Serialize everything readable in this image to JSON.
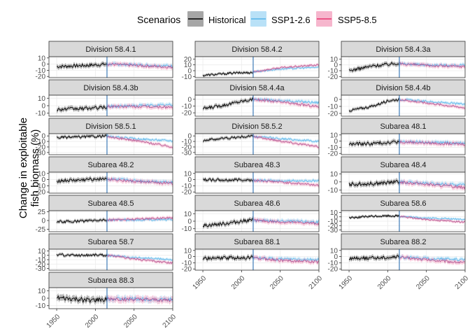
{
  "chart_data": {
    "type": "line",
    "ylabel_line1": "Change in exploitable",
    "ylabel_line2": "fish biomass (%)",
    "legend": {
      "title": "Scenarios",
      "position": "top",
      "entries": [
        {
          "name": "Historical",
          "color": "#000000",
          "fill": "#a6a6a6"
        },
        {
          "name": "SSP1-2.6",
          "color": "#56b4e9",
          "fill": "#b9e1f7"
        },
        {
          "name": "SSP5-8.5",
          "color": "#e7336f",
          "fill": "#f6b6cd"
        }
      ]
    },
    "x_ticks": [
      1950,
      2000,
      2050,
      2100
    ],
    "x_range": [
      1940,
      2100
    ],
    "scenario_split_year": 2015,
    "grid": true,
    "panels": [
      {
        "title": "Division 58.4.1",
        "yticks": [
          10,
          0,
          -10,
          -20
        ],
        "ylim": [
          -22,
          12
        ],
        "hist": [
          [
            1950,
            -4
          ],
          [
            1970,
            -3
          ],
          [
            1990,
            -2
          ],
          [
            2015,
            0
          ]
        ],
        "ssp126": [
          [
            2015,
            0
          ],
          [
            2050,
            -1
          ],
          [
            2100,
            -3
          ]
        ],
        "ssp585": [
          [
            2015,
            0
          ],
          [
            2050,
            -2
          ],
          [
            2100,
            -5
          ]
        ],
        "band": 6
      },
      {
        "title": "Division 58.4.2",
        "yticks": [
          20,
          10,
          0,
          -10
        ],
        "ylim": [
          -12,
          24
        ],
        "hist": [
          [
            1950,
            -8
          ],
          [
            1970,
            -6
          ],
          [
            1990,
            -4
          ],
          [
            2015,
            -3
          ]
        ],
        "ssp126": [
          [
            2015,
            -2
          ],
          [
            2050,
            3
          ],
          [
            2100,
            6
          ]
        ],
        "ssp585": [
          [
            2015,
            -2
          ],
          [
            2050,
            5
          ],
          [
            2100,
            10
          ]
        ],
        "band": 4
      },
      {
        "title": "Division 58.4.3a",
        "yticks": [
          10,
          0,
          -10,
          -20
        ],
        "ylim": [
          -22,
          14
        ],
        "hist": [
          [
            1950,
            -10
          ],
          [
            1980,
            -2
          ],
          [
            2000,
            1
          ],
          [
            2015,
            3
          ]
        ],
        "ssp126": [
          [
            2015,
            2
          ],
          [
            2050,
            0
          ],
          [
            2100,
            -1
          ]
        ],
        "ssp585": [
          [
            2015,
            2
          ],
          [
            2050,
            -1
          ],
          [
            2100,
            -3
          ]
        ],
        "band": 6
      },
      {
        "title": "Division 58.4.3b",
        "yticks": [
          10,
          0,
          -10
        ],
        "ylim": [
          -14,
          14
        ],
        "hist": [
          [
            1950,
            -5
          ],
          [
            1980,
            -4
          ],
          [
            2000,
            -3
          ],
          [
            2015,
            -2
          ]
        ],
        "ssp126": [
          [
            2015,
            -1
          ],
          [
            2050,
            0
          ],
          [
            2100,
            1
          ]
        ],
        "ssp585": [
          [
            2015,
            -1
          ],
          [
            2050,
            -1
          ],
          [
            2100,
            -2
          ]
        ],
        "band": 5
      },
      {
        "title": "Division 58.4.4a",
        "yticks": [
          0,
          -10,
          -20
        ],
        "ylim": [
          -25,
          6
        ],
        "hist": [
          [
            1950,
            -14
          ],
          [
            1980,
            -8
          ],
          [
            2000,
            -3
          ],
          [
            2015,
            0
          ]
        ],
        "ssp126": [
          [
            2015,
            0
          ],
          [
            2050,
            -2
          ],
          [
            2100,
            -5
          ]
        ],
        "ssp585": [
          [
            2015,
            0
          ],
          [
            2050,
            -4
          ],
          [
            2100,
            -11
          ]
        ],
        "band": 5
      },
      {
        "title": "Division 58.4.4b",
        "yticks": [
          0,
          -10,
          -20
        ],
        "ylim": [
          -24,
          6
        ],
        "hist": [
          [
            1950,
            -16
          ],
          [
            1980,
            -10
          ],
          [
            2000,
            -2
          ],
          [
            2015,
            0
          ]
        ],
        "ssp126": [
          [
            2015,
            0
          ],
          [
            2050,
            -3
          ],
          [
            2100,
            -7
          ]
        ],
        "ssp585": [
          [
            2015,
            0
          ],
          [
            2050,
            -5
          ],
          [
            2100,
            -12
          ]
        ],
        "band": 4
      },
      {
        "title": "Division 58.5.1",
        "yticks": [
          0,
          -10,
          -20,
          -30
        ],
        "ylim": [
          -34,
          4
        ],
        "hist": [
          [
            1950,
            -3
          ],
          [
            1980,
            -2
          ],
          [
            2000,
            -1
          ],
          [
            2015,
            0
          ]
        ],
        "ssp126": [
          [
            2015,
            -1
          ],
          [
            2050,
            -5
          ],
          [
            2100,
            -9
          ]
        ],
        "ssp585": [
          [
            2015,
            -1
          ],
          [
            2050,
            -8
          ],
          [
            2100,
            -20
          ]
        ],
        "band": 5
      },
      {
        "title": "Division 58.5.2",
        "yticks": [
          0,
          -10,
          -20,
          -30
        ],
        "ylim": [
          -34,
          4
        ],
        "hist": [
          [
            1950,
            -8
          ],
          [
            1980,
            -4
          ],
          [
            2000,
            -2
          ],
          [
            2015,
            0
          ]
        ],
        "ssp126": [
          [
            2015,
            -1
          ],
          [
            2050,
            -5
          ],
          [
            2100,
            -10
          ]
        ],
        "ssp585": [
          [
            2015,
            -1
          ],
          [
            2050,
            -9
          ],
          [
            2100,
            -20
          ]
        ],
        "band": 5
      },
      {
        "title": "Subarea 48.1",
        "yticks": [
          10,
          0,
          -10,
          -20
        ],
        "ylim": [
          -22,
          12
        ],
        "hist": [
          [
            1950,
            -5
          ],
          [
            1980,
            -4
          ],
          [
            2000,
            -2
          ],
          [
            2015,
            -1
          ]
        ],
        "ssp126": [
          [
            2015,
            -1
          ],
          [
            2050,
            -2
          ],
          [
            2100,
            -3
          ]
        ],
        "ssp585": [
          [
            2015,
            -1
          ],
          [
            2050,
            -3
          ],
          [
            2100,
            -5
          ]
        ],
        "band": 6
      },
      {
        "title": "Subarea 48.2",
        "yticks": [
          10,
          0,
          -10,
          -20
        ],
        "ylim": [
          -22,
          12
        ],
        "hist": [
          [
            1950,
            -2
          ],
          [
            1980,
            -1
          ],
          [
            2000,
            1
          ],
          [
            2015,
            2
          ]
        ],
        "ssp126": [
          [
            2015,
            1
          ],
          [
            2050,
            -2
          ],
          [
            2100,
            -4
          ]
        ],
        "ssp585": [
          [
            2015,
            1
          ],
          [
            2050,
            -3
          ],
          [
            2100,
            -6
          ]
        ],
        "band": 6
      },
      {
        "title": "Subarea 48.3",
        "yticks": [
          10,
          0,
          -10,
          -20
        ],
        "ylim": [
          -22,
          12
        ],
        "hist": [
          [
            1950,
            0
          ],
          [
            1980,
            -1
          ],
          [
            2000,
            0
          ],
          [
            2015,
            -1
          ]
        ],
        "ssp126": [
          [
            2015,
            -1
          ],
          [
            2050,
            -2
          ],
          [
            2100,
            -2
          ]
        ],
        "ssp585": [
          [
            2015,
            -1
          ],
          [
            2050,
            -4
          ],
          [
            2100,
            -9
          ]
        ],
        "band": 5
      },
      {
        "title": "Subarea 48.4",
        "yticks": [
          10,
          0,
          -10
        ],
        "ylim": [
          -14,
          12
        ],
        "hist": [
          [
            1950,
            -3
          ],
          [
            1980,
            -2
          ],
          [
            2000,
            -1
          ],
          [
            2015,
            0
          ]
        ],
        "ssp126": [
          [
            2015,
            0
          ],
          [
            2050,
            -2
          ],
          [
            2100,
            -4
          ]
        ],
        "ssp585": [
          [
            2015,
            0
          ],
          [
            2050,
            -3
          ],
          [
            2100,
            -7
          ]
        ],
        "band": 5
      },
      {
        "title": "Subarea 48.5",
        "yticks": [
          25,
          0,
          -25
        ],
        "ylim": [
          -32,
          28
        ],
        "hist": [
          [
            1950,
            -4
          ],
          [
            1980,
            -2
          ],
          [
            2000,
            0
          ],
          [
            2015,
            2
          ]
        ],
        "ssp126": [
          [
            2015,
            1
          ],
          [
            2050,
            2
          ],
          [
            2100,
            3
          ]
        ],
        "ssp585": [
          [
            2015,
            1
          ],
          [
            2050,
            4
          ],
          [
            2100,
            8
          ]
        ],
        "band": 8
      },
      {
        "title": "Subarea 48.6",
        "yticks": [
          10,
          0,
          -10
        ],
        "ylim": [
          -14,
          14
        ],
        "hist": [
          [
            1950,
            -6
          ],
          [
            1980,
            -3
          ],
          [
            2000,
            0
          ],
          [
            2015,
            2
          ]
        ],
        "ssp126": [
          [
            2015,
            1
          ],
          [
            2050,
            0
          ],
          [
            2100,
            -1
          ]
        ],
        "ssp585": [
          [
            2015,
            1
          ],
          [
            2050,
            -1
          ],
          [
            2100,
            -3
          ]
        ],
        "band": 5
      },
      {
        "title": "Subarea 58.6",
        "yticks": [
          10,
          0,
          -10,
          -20,
          -30
        ],
        "ylim": [
          -34,
          14
        ],
        "hist": [
          [
            1950,
            -2
          ],
          [
            1980,
            1
          ],
          [
            2000,
            2
          ],
          [
            2015,
            2
          ]
        ],
        "ssp126": [
          [
            2015,
            1
          ],
          [
            2050,
            -3
          ],
          [
            2100,
            -6
          ]
        ],
        "ssp585": [
          [
            2015,
            1
          ],
          [
            2050,
            -6
          ],
          [
            2100,
            -12
          ]
        ],
        "band": 5
      },
      {
        "title": "Subarea 58.7",
        "yticks": [
          10,
          0,
          -10,
          -20,
          -30
        ],
        "ylim": [
          -34,
          14
        ],
        "hist": [
          [
            1950,
            1
          ],
          [
            1980,
            0
          ],
          [
            2000,
            1
          ],
          [
            2015,
            0
          ]
        ],
        "ssp126": [
          [
            2015,
            0
          ],
          [
            2050,
            -5
          ],
          [
            2100,
            -10
          ]
        ],
        "ssp585": [
          [
            2015,
            0
          ],
          [
            2050,
            -8
          ],
          [
            2100,
            -18
          ]
        ],
        "band": 6
      },
      {
        "title": "Subarea 88.1",
        "yticks": [
          10,
          0,
          -10,
          -20
        ],
        "ylim": [
          -22,
          12
        ],
        "hist": [
          [
            1950,
            -3
          ],
          [
            1980,
            -2
          ],
          [
            2000,
            -2
          ],
          [
            2015,
            -1
          ]
        ],
        "ssp126": [
          [
            2015,
            -2
          ],
          [
            2050,
            -4
          ],
          [
            2100,
            -5
          ]
        ],
        "ssp585": [
          [
            2015,
            -2
          ],
          [
            2050,
            -6
          ],
          [
            2100,
            -9
          ]
        ],
        "band": 6
      },
      {
        "title": "Subarea 88.2",
        "yticks": [
          10,
          0,
          -10,
          -20
        ],
        "ylim": [
          -22,
          12
        ],
        "hist": [
          [
            1950,
            -3
          ],
          [
            1980,
            -2
          ],
          [
            2000,
            -1
          ],
          [
            2015,
            0
          ]
        ],
        "ssp126": [
          [
            2015,
            -1
          ],
          [
            2050,
            -3
          ],
          [
            2100,
            -5
          ]
        ],
        "ssp585": [
          [
            2015,
            -1
          ],
          [
            2050,
            -5
          ],
          [
            2100,
            -10
          ]
        ],
        "band": 6
      },
      {
        "title": "Subarea 88.3",
        "yticks": [
          10,
          0,
          -10
        ],
        "ylim": [
          -14,
          14
        ],
        "hist": [
          [
            1950,
            0
          ],
          [
            1980,
            -2
          ],
          [
            2000,
            -3
          ],
          [
            2015,
            -1
          ]
        ],
        "ssp126": [
          [
            2015,
            -1
          ],
          [
            2050,
            -1
          ],
          [
            2100,
            -2
          ]
        ],
        "ssp585": [
          [
            2015,
            -1
          ],
          [
            2050,
            -2
          ],
          [
            2100,
            -3
          ]
        ],
        "band": 7
      }
    ]
  }
}
